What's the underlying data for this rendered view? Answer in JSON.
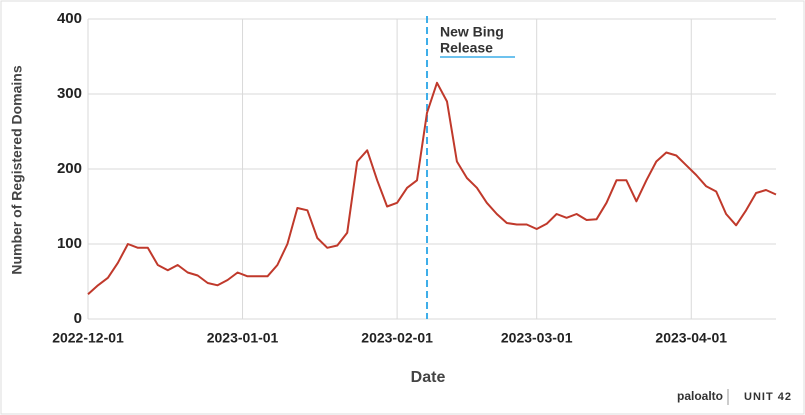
{
  "chart_data": {
    "type": "line",
    "xlabel": "Date",
    "ylabel": "Number of Registered Domains",
    "x": [
      "2022-12-01",
      "2022-12-03",
      "2022-12-05",
      "2022-12-07",
      "2022-12-09",
      "2022-12-11",
      "2022-12-13",
      "2022-12-15",
      "2022-12-17",
      "2022-12-19",
      "2022-12-21",
      "2022-12-23",
      "2022-12-25",
      "2022-12-27",
      "2022-12-29",
      "2022-12-31",
      "2023-01-02",
      "2023-01-04",
      "2023-01-06",
      "2023-01-08",
      "2023-01-10",
      "2023-01-12",
      "2023-01-14",
      "2023-01-16",
      "2023-01-18",
      "2023-01-20",
      "2023-01-22",
      "2023-01-24",
      "2023-01-26",
      "2023-01-28",
      "2023-01-30",
      "2023-02-01",
      "2023-02-03",
      "2023-02-05",
      "2023-02-07",
      "2023-02-09",
      "2023-02-11",
      "2023-02-13",
      "2023-02-15",
      "2023-02-17",
      "2023-02-19",
      "2023-02-21",
      "2023-02-23",
      "2023-02-25",
      "2023-02-27",
      "2023-03-01",
      "2023-03-03",
      "2023-03-05",
      "2023-03-07",
      "2023-03-09",
      "2023-03-11",
      "2023-03-13",
      "2023-03-15",
      "2023-03-17",
      "2023-03-19",
      "2023-03-21",
      "2023-03-23",
      "2023-03-25",
      "2023-03-27",
      "2023-03-29",
      "2023-03-31",
      "2023-04-02",
      "2023-04-04",
      "2023-04-06",
      "2023-04-08",
      "2023-04-10",
      "2023-04-12",
      "2023-04-14",
      "2023-04-16",
      "2023-04-18"
    ],
    "series": [
      {
        "name": "Registered Domains",
        "color": "#c0392b",
        "values": [
          33,
          45,
          55,
          75,
          100,
          95,
          95,
          72,
          65,
          72,
          62,
          58,
          48,
          45,
          52,
          62,
          57,
          57,
          57,
          72,
          100,
          148,
          145,
          108,
          95,
          98,
          115,
          210,
          225,
          185,
          150,
          155,
          175,
          185,
          275,
          315,
          290,
          210,
          188,
          175,
          155,
          140,
          128,
          126,
          126,
          120,
          127,
          140,
          135,
          140,
          132,
          133,
          155,
          185,
          185,
          157,
          185,
          210,
          222,
          218,
          205,
          192,
          177,
          170,
          140,
          125,
          145,
          168,
          172,
          166
        ]
      }
    ],
    "xlim": [
      "2022-12-01",
      "2023-04-18"
    ],
    "xticks": [
      "2022-12-01",
      "2023-01-01",
      "2023-02-01",
      "2023-03-01",
      "2023-04-01"
    ],
    "ylim": [
      0,
      400
    ],
    "yticks": [
      0,
      100,
      200,
      300,
      400
    ],
    "grid": true,
    "annotation": {
      "text": [
        "New Bing",
        "Release"
      ],
      "x": "2023-02-07",
      "color": "#3daee9"
    },
    "logos": [
      "paloalto",
      "UNIT 42"
    ]
  }
}
